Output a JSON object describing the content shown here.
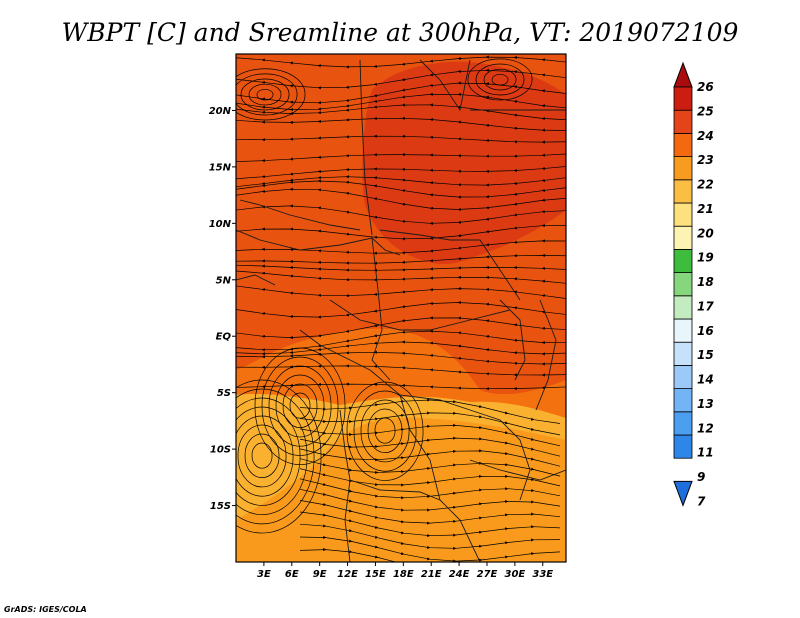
{
  "title": "WBPT [C] and Sreamline at 300hPa, VT: 2019072109",
  "credit": "GrADS: IGES/COLA",
  "map": {
    "lon_range": [
      0,
      35.5
    ],
    "lat_range": [
      -20,
      25
    ],
    "lon_ticks": [
      {
        "value": 3,
        "label": "3E"
      },
      {
        "value": 6,
        "label": "6E"
      },
      {
        "value": 9,
        "label": "9E"
      },
      {
        "value": 12,
        "label": "12E"
      },
      {
        "value": 15,
        "label": "15E"
      },
      {
        "value": 18,
        "label": "18E"
      },
      {
        "value": 21,
        "label": "21E"
      },
      {
        "value": 24,
        "label": "24E"
      },
      {
        "value": 27,
        "label": "27E"
      },
      {
        "value": 30,
        "label": "30E"
      },
      {
        "value": 33,
        "label": "33E"
      }
    ],
    "lat_ticks": [
      {
        "value": 20,
        "label": "20N"
      },
      {
        "value": 15,
        "label": "15N"
      },
      {
        "value": 10,
        "label": "10N"
      },
      {
        "value": 5,
        "label": "5N"
      },
      {
        "value": 0,
        "label": "EQ"
      },
      {
        "value": -5,
        "label": "5S"
      },
      {
        "value": -10,
        "label": "10S"
      },
      {
        "value": -15,
        "label": "15S"
      }
    ],
    "field_colors": {
      "c20": "#fbb130",
      "c21": "#f99a1c",
      "c22": "#f3720f",
      "c23": "#e8530f",
      "c24": "#dc3a13"
    }
  },
  "colorbar": {
    "labels": [
      "7",
      "9",
      "11",
      "12",
      "13",
      "14",
      "15",
      "16",
      "17",
      "18",
      "19",
      "20",
      "21",
      "22",
      "23",
      "24",
      "25",
      "26"
    ],
    "colors": [
      "#1e6fdb",
      "#2d86e8",
      "#4c9ef0",
      "#72b4f5",
      "#9ccaf8",
      "#c6e2fb",
      "#e8f5fb",
      "#c3ecc0",
      "#86d67e",
      "#3ebc3e",
      "#fdf3b2",
      "#fde17f",
      "#fbbe45",
      "#f89c1f",
      "#f2690f",
      "#e3441a",
      "#cc1e10",
      "#a80c0c"
    ]
  }
}
